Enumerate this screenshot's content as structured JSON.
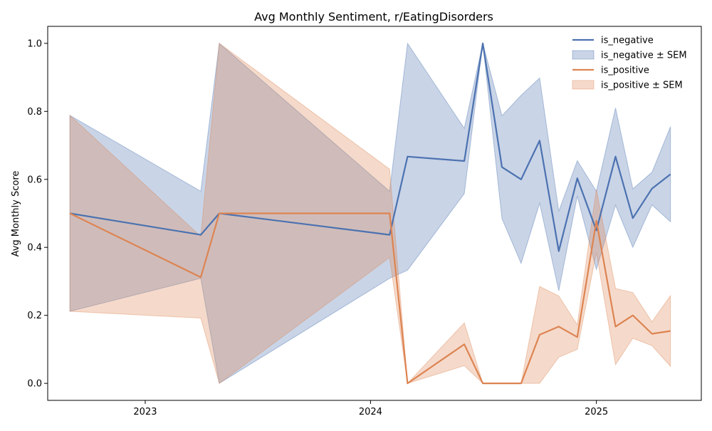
{
  "chart_data": {
    "type": "line",
    "title": "Avg Monthly Sentiment, r/EatingDisorders",
    "xlabel": "",
    "ylabel": "Avg Monthly Score",
    "x": [
      "2022-09",
      "2023-04",
      "2023-05",
      "2024-02",
      "2024-03",
      "2024-06",
      "2024-07",
      "2024-08",
      "2024-09",
      "2024-10",
      "2024-11",
      "2024-12",
      "2025-01",
      "2025-02",
      "2025-03",
      "2025-04",
      "2025-05"
    ],
    "x_ticks": [
      "2023",
      "2024",
      "2025"
    ],
    "y_ticks": [
      "0.0",
      "0.2",
      "0.4",
      "0.6",
      "0.8",
      "1.0"
    ],
    "ylim": [
      -0.05,
      1.05
    ],
    "grid": false,
    "legend_position": "top-right",
    "legend_entries": [
      "is_negative",
      "is_negative ± SEM",
      "is_positive",
      "is_positive ± SEM"
    ],
    "series": [
      {
        "name": "is_negative",
        "color": "#4c72b0",
        "values": [
          0.5,
          0.437,
          0.5,
          0.437,
          0.667,
          0.654,
          1.0,
          0.636,
          0.6,
          0.714,
          0.389,
          0.603,
          0.45,
          0.667,
          0.486,
          0.573,
          0.615
        ],
        "band_lower": [
          0.212,
          0.309,
          0.0,
          0.309,
          0.333,
          0.558,
          1.0,
          0.485,
          0.353,
          0.53,
          0.272,
          0.551,
          0.335,
          0.524,
          0.4,
          0.525,
          0.475
        ],
        "band_upper": [
          0.788,
          0.565,
          1.0,
          0.565,
          1.0,
          0.75,
          1.0,
          0.787,
          0.847,
          0.898,
          0.506,
          0.655,
          0.565,
          0.81,
          0.572,
          0.621,
          0.755
        ]
      },
      {
        "name": "is_positive",
        "color": "#dd8452",
        "values": [
          0.5,
          0.312,
          0.5,
          0.5,
          0.0,
          0.115,
          0.0,
          0.0,
          0.0,
          0.143,
          0.167,
          0.136,
          0.478,
          0.167,
          0.2,
          0.146,
          0.154
        ],
        "band_lower": [
          0.212,
          0.192,
          0.0,
          0.37,
          0.0,
          0.052,
          0.0,
          0.0,
          0.0,
          0.0,
          0.077,
          0.1,
          0.385,
          0.055,
          0.133,
          0.111,
          0.05
        ],
        "band_upper": [
          0.788,
          0.432,
          1.0,
          0.63,
          0.0,
          0.178,
          0.0,
          0.0,
          0.0,
          0.285,
          0.257,
          0.172,
          0.57,
          0.279,
          0.267,
          0.181,
          0.258
        ]
      }
    ]
  }
}
